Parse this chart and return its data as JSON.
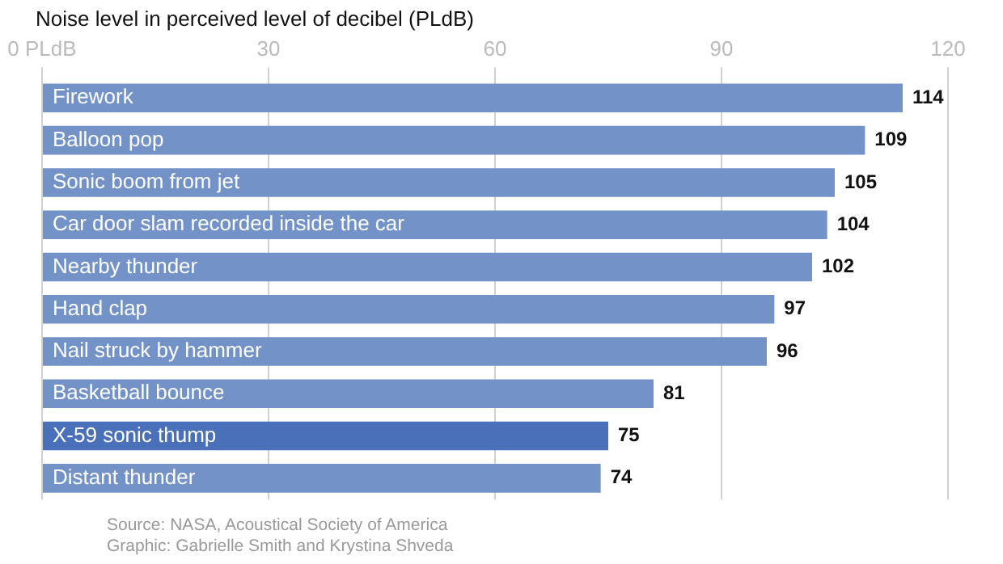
{
  "chart_data": {
    "type": "bar",
    "orientation": "horizontal",
    "title": "Noise level in perceived level of decibel (PLdB)",
    "categories": [
      "Firework",
      "Balloon pop",
      "Sonic boom from jet",
      "Car door slam recorded inside the car",
      "Nearby thunder",
      "Hand clap",
      "Nail struck by hammer",
      "Basketball bounce",
      "X-59 sonic thump",
      "Distant thunder"
    ],
    "values": [
      114,
      109,
      105,
      104,
      102,
      97,
      96,
      81,
      75,
      74
    ],
    "colors": [
      "#7393c8",
      "#7393c8",
      "#7393c8",
      "#7393c8",
      "#7393c8",
      "#7393c8",
      "#7393c8",
      "#7393c8",
      "#4a70ba",
      "#7393c8"
    ],
    "xlim": [
      0,
      120
    ],
    "xticks": [
      {
        "value": 0,
        "label": "0 PLdB"
      },
      30,
      60,
      90,
      120
    ],
    "grid": "x",
    "data_labels": true,
    "legend": false,
    "annotations": [
      "Source: NASA,  Acoustical Society of America",
      "Graphic: Gabrielle Smith and Krystina Shveda"
    ]
  }
}
